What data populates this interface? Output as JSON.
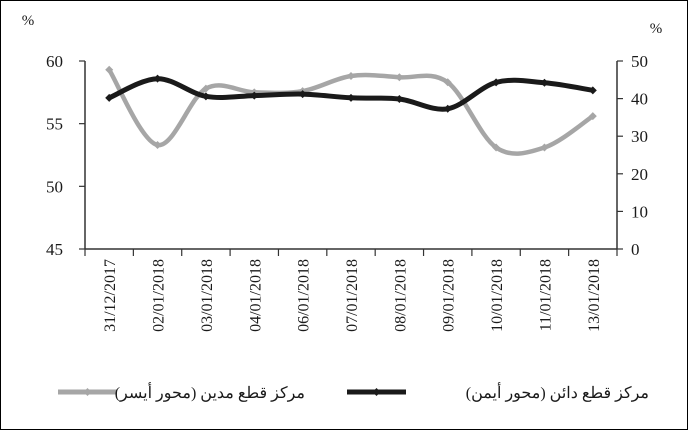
{
  "chart_data": {
    "type": "line",
    "title": "",
    "categories": [
      "31/12/2017",
      "02/01/2018",
      "03/01/2018",
      "04/01/2018",
      "06/01/2018",
      "07/01/2018",
      "08/01/2018",
      "09/01/2018",
      "10/01/2018",
      "11/01/2018",
      "13/01/2018"
    ],
    "y_left": {
      "unit": "%",
      "min": 45,
      "max": 60,
      "ticks": [
        45,
        50,
        55,
        60
      ]
    },
    "y_right": {
      "unit": "%",
      "min": 0,
      "max": 50,
      "ticks": [
        0,
        10,
        20,
        30,
        40,
        50
      ]
    },
    "series": [
      {
        "name": "مركز قطع مدين (محور أيسر)",
        "axis": "left",
        "color": "#a6a6a6",
        "values": [
          59.3,
          53.3,
          57.8,
          57.5,
          57.6,
          58.8,
          58.7,
          58.3,
          53.1,
          53.1,
          55.6
        ]
      },
      {
        "name": "مركز قطع دائن (محور أيمن)",
        "axis": "right",
        "color": "#1a1a1a",
        "values": [
          40.2,
          45.3,
          40.6,
          40.8,
          41.2,
          40.2,
          39.9,
          37.3,
          44.3,
          44.2,
          42.2
        ]
      }
    ],
    "grid": false,
    "legend_position": "bottom"
  }
}
